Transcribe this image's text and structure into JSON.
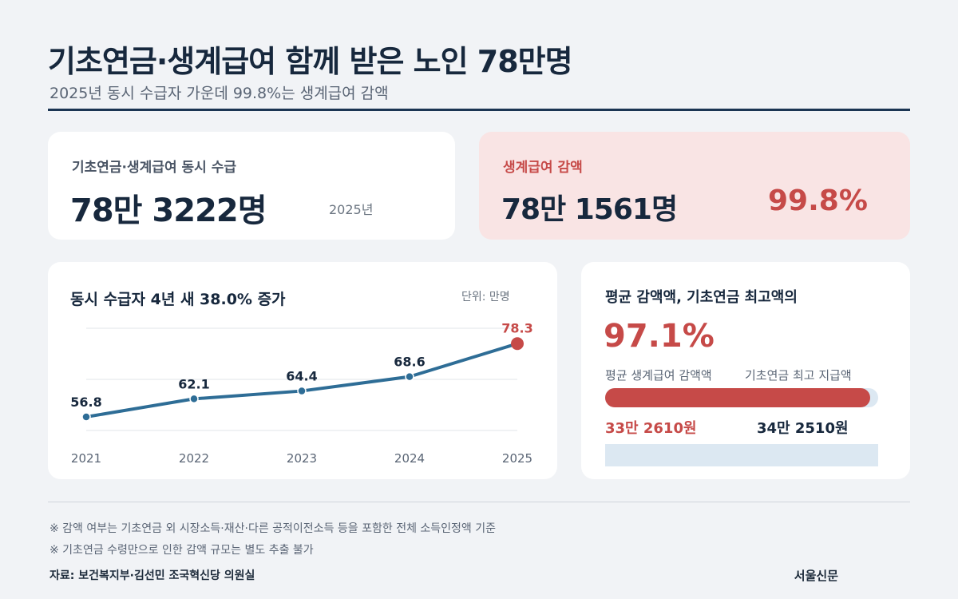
{
  "header": {
    "title": "기초연금·생계급여 함께 받은 노인 78만명",
    "subtitle": "2025년 동시 수급자 가운데 99.8%는 생계급여 감액"
  },
  "card_total": {
    "label": "기초연금·생계급여 동시 수급",
    "value": "78만 3222명",
    "year": "2025년"
  },
  "card_reduced": {
    "label": "생계급여 감액",
    "value": "78만 1561명",
    "percent": "99.8%"
  },
  "line_chart": {
    "title": "동시 수급자 4년 새 38.0% 증가",
    "unit": "단위: 만명"
  },
  "reduction_card": {
    "title": "평균 감액액, 기초연금 최고액의",
    "percent": "97.1%",
    "label_left": "평균 생계급여 감액액",
    "label_right": "기초연금 최고 지급액",
    "value_left": "33만 2610원",
    "value_right": "34만 2510원",
    "bar_fraction": 0.971
  },
  "chart_data": [
    {
      "type": "line",
      "x": [
        "2021",
        "2022",
        "2023",
        "2024",
        "2025"
      ],
      "series": [
        {
          "values": [
            56.8,
            62.1,
            64.4,
            68.6,
            78.3
          ]
        }
      ],
      "title": "동시 수급자 4년 새 38.0% 증가",
      "ylabel": "단위: 만명",
      "ylim": [
        50,
        80
      ],
      "grid": true,
      "highlight_last": true
    }
  ],
  "footer": {
    "note1": "※ 감액 여부는 기초연금 외 시장소득·재산·다른 공적이전소득 등을 포함한 전체 소득인정액 기준",
    "note2": "※ 기초연금 수령만으로 인한 감액 규모는 별도 추출 불가",
    "source": "자료: 보건복지부·김선민 조국혁신당 의원실",
    "publisher": "서울신문"
  },
  "colors": {
    "navy": "#17283d",
    "accent_red": "#c64a48",
    "line_blue": "#2e6d96",
    "pale_blue": "#dce8f2",
    "pink_card": "#f9e4e4"
  }
}
